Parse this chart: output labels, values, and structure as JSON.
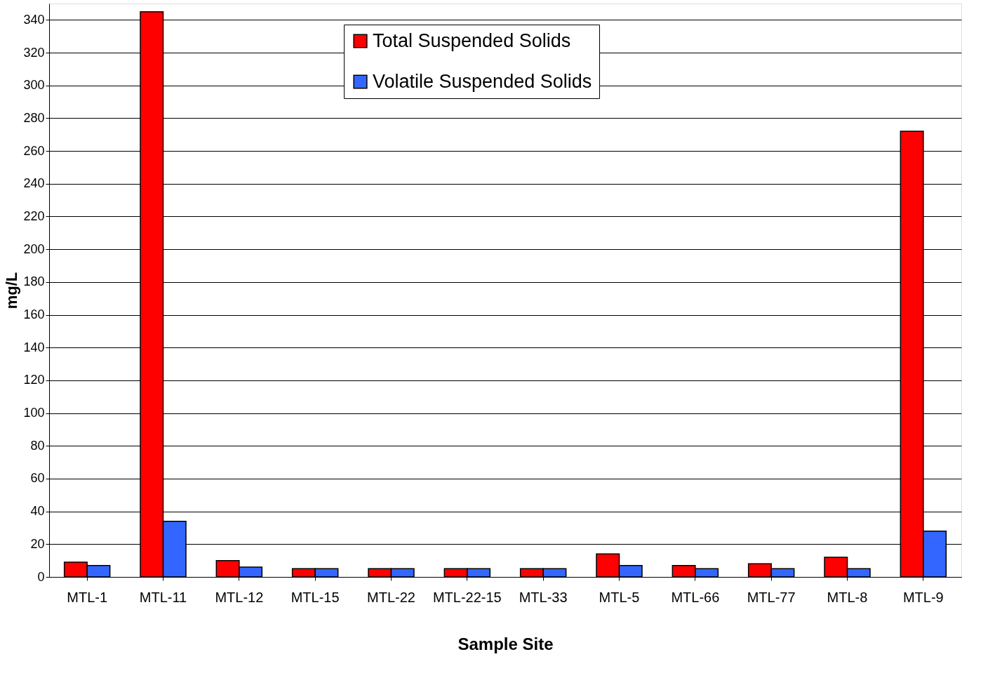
{
  "chart_data": {
    "type": "bar",
    "xlabel": "Sample Site",
    "ylabel": "mg/L",
    "categories": [
      "MTL-1",
      "MTL-11",
      "MTL-12",
      "MTL-15",
      "MTL-22",
      "MTL-22-15",
      "MTL-33",
      "MTL-5",
      "MTL-66",
      "MTL-77",
      "MTL-8",
      "MTL-9"
    ],
    "series": [
      {
        "name": "Total Suspended Solids",
        "color": "#ff0000",
        "values": [
          9,
          345,
          10,
          5,
          5,
          5,
          5,
          14,
          7,
          8,
          12,
          272
        ]
      },
      {
        "name": "Volatile Suspended Solids",
        "color": "#3366ff",
        "values": [
          7,
          34,
          6,
          5,
          5,
          5,
          5,
          7,
          5,
          5,
          5,
          28
        ]
      }
    ],
    "ylim": [
      0,
      350
    ],
    "yticks": [
      0,
      20,
      40,
      60,
      80,
      100,
      120,
      140,
      160,
      180,
      200,
      220,
      240,
      260,
      280,
      300,
      320,
      340
    ],
    "grid": "y",
    "legend": "top"
  }
}
